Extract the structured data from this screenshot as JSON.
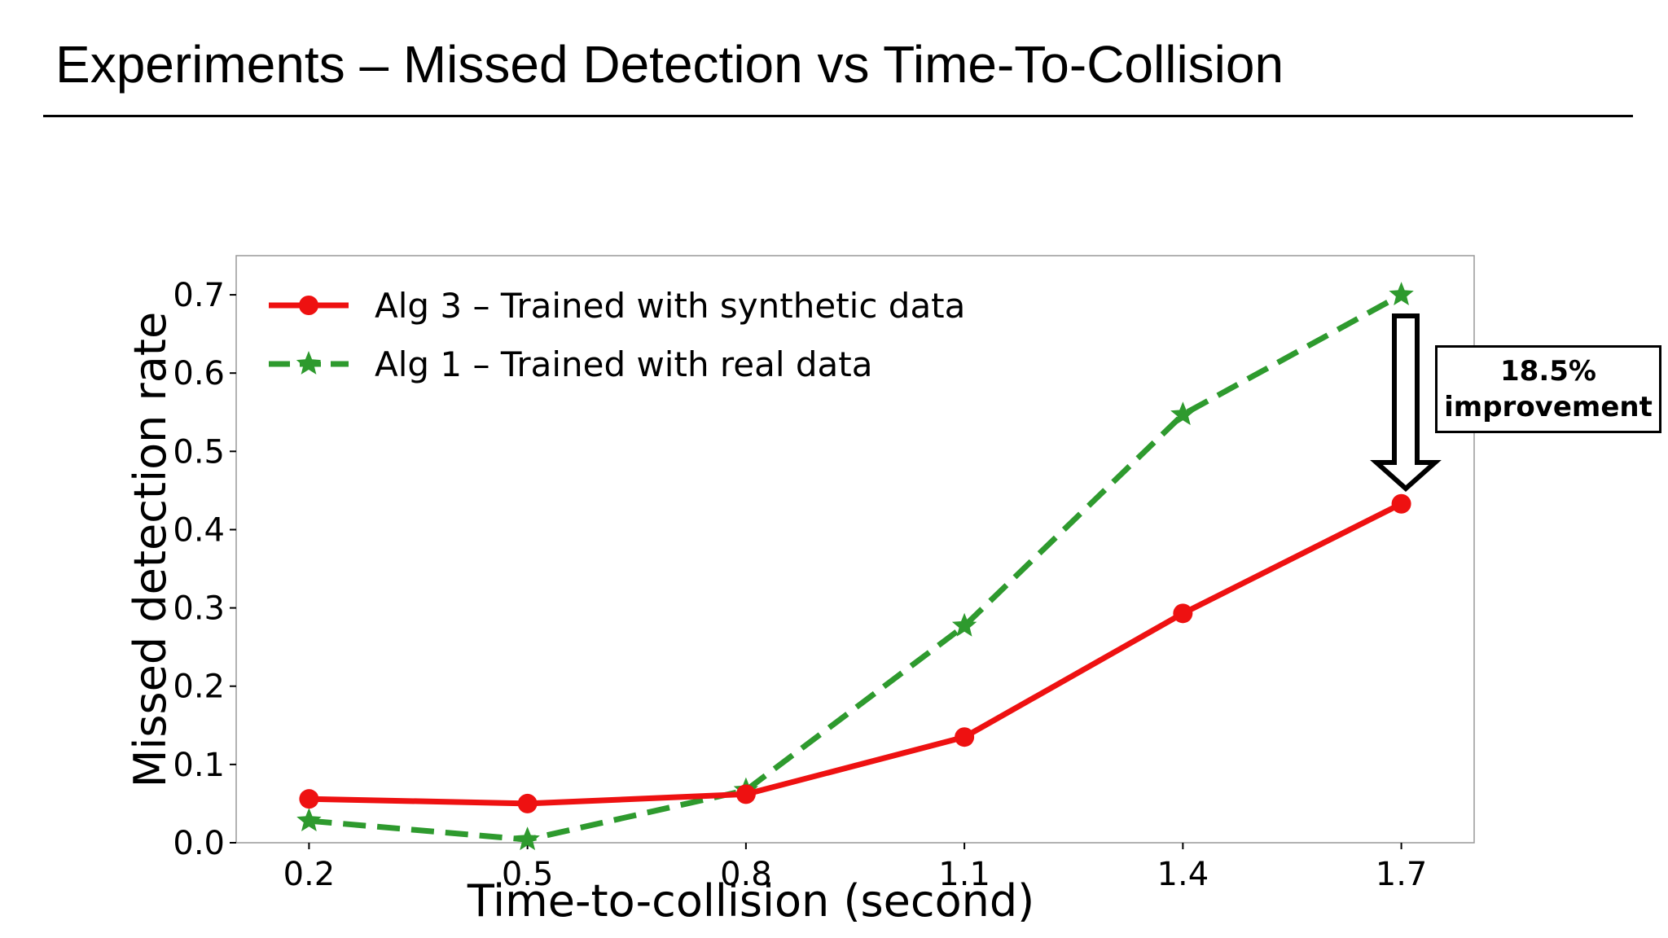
{
  "slide": {
    "title": "Experiments – Missed Detection vs Time-To-Collision"
  },
  "annotation": {
    "line1": "18.5%",
    "line2": "improvement"
  },
  "colors": {
    "alg3": "#ee1111",
    "alg1": "#2e9a2e"
  },
  "chart_data": {
    "type": "line",
    "xlabel": "Time-to-collision (second)",
    "ylabel": "Missed detection rate",
    "x": [
      0.2,
      0.5,
      0.8,
      1.1,
      1.4,
      1.7
    ],
    "x_tick_labels": [
      "0.2",
      "0.5",
      "0.8",
      "1.1",
      "1.4",
      "1.7"
    ],
    "xlim": [
      0.1,
      1.8
    ],
    "ylim": [
      0.0,
      0.75
    ],
    "y_ticks": [
      0.0,
      0.1,
      0.2,
      0.3,
      0.4,
      0.5,
      0.6,
      0.7
    ],
    "y_tick_labels": [
      "0.0",
      "0.1",
      "0.2",
      "0.3",
      "0.4",
      "0.5",
      "0.6",
      "0.7"
    ],
    "grid": false,
    "legend_position": "top-left",
    "series": [
      {
        "name": "Alg 3 – Trained with synthetic data",
        "values": [
          0.056,
          0.05,
          0.062,
          0.135,
          0.293,
          0.433
        ],
        "color": "#ee1111",
        "marker": "circle",
        "line_style": "solid"
      },
      {
        "name": "Alg 1 – Trained with real data",
        "values": [
          0.028,
          0.004,
          0.067,
          0.277,
          0.547,
          0.7
        ],
        "color": "#2e9a2e",
        "marker": "star",
        "line_style": "dashed"
      }
    ]
  }
}
